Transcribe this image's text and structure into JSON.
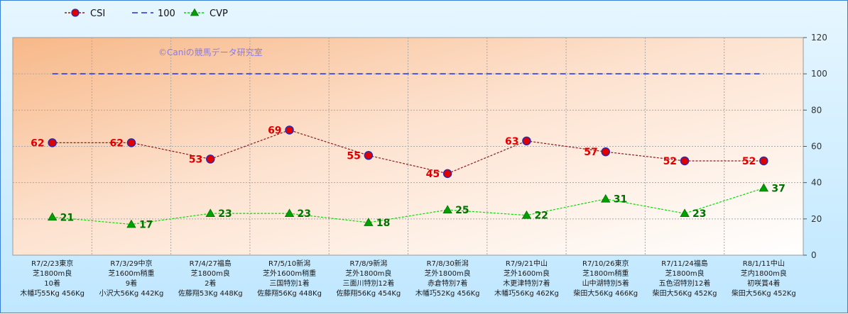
{
  "chart_data": {
    "type": "line",
    "watermark": "©Caniの競馬データ研究室",
    "ylim": [
      0,
      120
    ],
    "yticks": [
      0,
      20,
      40,
      60,
      80,
      100,
      120
    ],
    "categories": [
      [
        "R7/2/23東京",
        "芝1800m良",
        "10着",
        "木幡巧55Kg 456Kg"
      ],
      [
        "R7/3/29中京",
        "芝1600m稍重",
        "9着",
        "小沢大56Kg 442Kg"
      ],
      [
        "R7/4/27福島",
        "芝1800m良",
        "2着",
        "佐藤翔53Kg 448Kg"
      ],
      [
        "R7/5/10新潟",
        "芝外1600m稍重",
        "三国特別1着",
        "佐藤翔56Kg 448Kg"
      ],
      [
        "R7/8/9新潟",
        "芝外1800m良",
        "三面川特別12着",
        "佐藤翔56Kg 454Kg"
      ],
      [
        "R7/8/30新潟",
        "芝外1800m良",
        "赤倉特別7着",
        "木幡巧52Kg 456Kg"
      ],
      [
        "R7/9/21中山",
        "芝外1600m良",
        "木更津特別7着",
        "木幡巧56Kg 462Kg"
      ],
      [
        "R7/10/26東京",
        "芝1800m稍重",
        "山中湖特別5着",
        "柴田大56Kg 466Kg"
      ],
      [
        "R7/11/24福島",
        "芝1800m良",
        "五色沼特別12着",
        "柴田大56Kg 452Kg"
      ],
      [
        "R8/1/11中山",
        "芝内1800m良",
        "初咲賞4着",
        "柴田大56Kg 452Kg"
      ]
    ],
    "series": [
      {
        "name": "CSI",
        "values": [
          62,
          62,
          53,
          69,
          55,
          45,
          63,
          57,
          52,
          52
        ],
        "color": "#8b1a1a",
        "marker": "#e00000",
        "label_color": "#e00000"
      },
      {
        "name": "100",
        "values": [
          100,
          100,
          100,
          100,
          100,
          100,
          100,
          100,
          100,
          100
        ],
        "color": "#1e2fd0"
      },
      {
        "name": "CVP",
        "values": [
          21,
          17,
          23,
          23,
          18,
          25,
          22,
          31,
          23,
          37
        ],
        "color": "#00dd00",
        "marker": "#00a000",
        "label_color": "#007000"
      }
    ],
    "legend": "top-left",
    "grid": true
  }
}
